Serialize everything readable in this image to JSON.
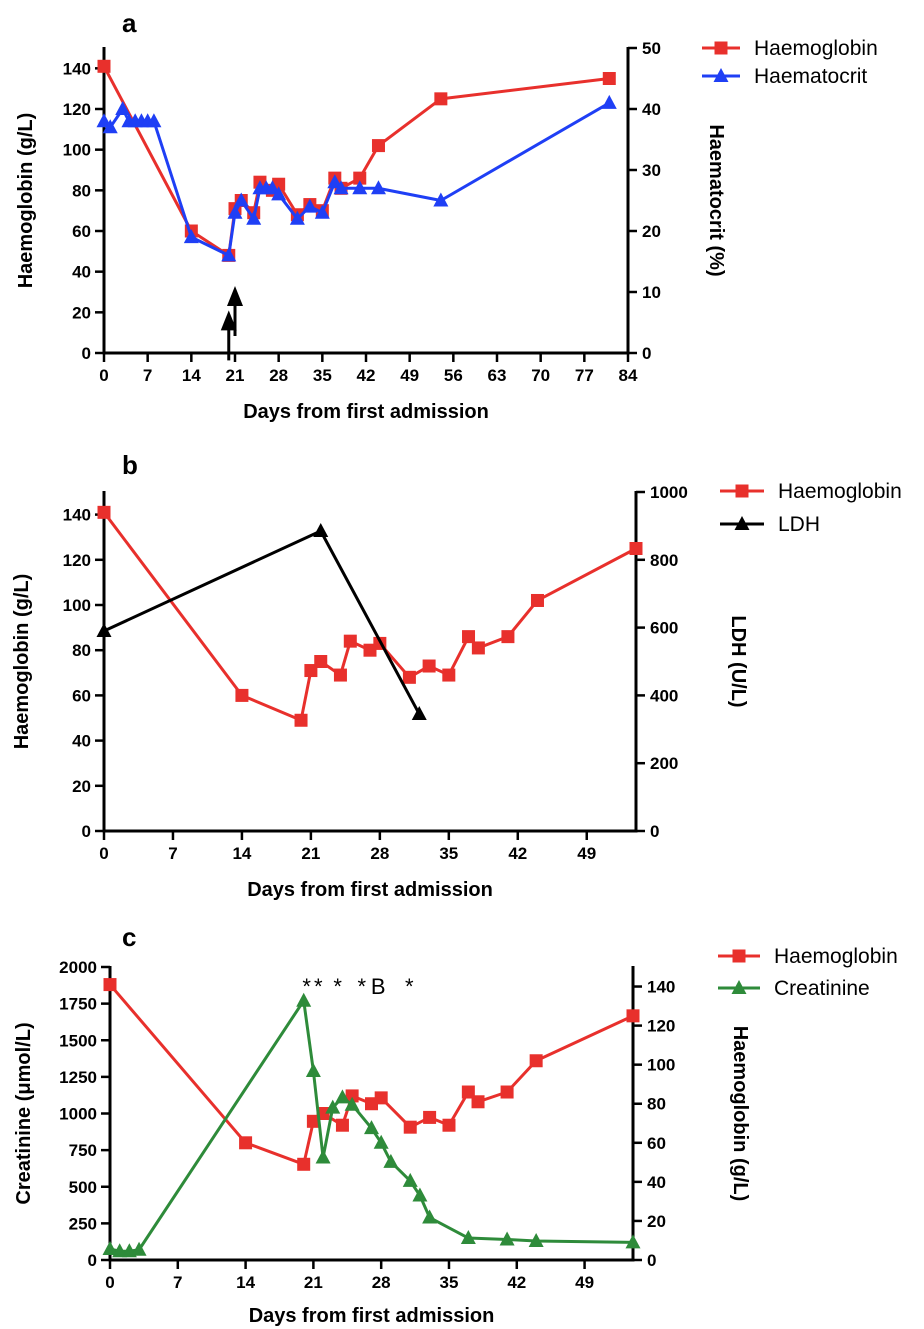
{
  "chart_data": [
    {
      "panel": "a",
      "type": "line",
      "xlabel": "Days from first admission",
      "xlim": [
        0,
        84
      ],
      "xticks": [
        0,
        7,
        14,
        21,
        28,
        35,
        42,
        49,
        56,
        63,
        70,
        77,
        84
      ],
      "ylabel": "Haemoglobin (g/L)",
      "ylim": [
        0,
        150
      ],
      "yticks": [
        0,
        20,
        40,
        60,
        80,
        100,
        120,
        140
      ],
      "y2label": "Haematocrit (%)",
      "y2lim": [
        0,
        50
      ],
      "y2ticks": [
        0,
        10,
        20,
        30,
        40,
        50
      ],
      "legend_position": "top-right",
      "series": [
        {
          "name": "Haemoglobin",
          "axis": "left",
          "color": "#e8302c",
          "marker": "square",
          "x": [
            0,
            14,
            20,
            21,
            22,
            24,
            25,
            27,
            28,
            31,
            33,
            35,
            37,
            38,
            41,
            44,
            54,
            81
          ],
          "y": [
            141,
            60,
            48,
            71,
            75,
            69,
            84,
            80,
            83,
            68,
            73,
            70,
            86,
            81,
            86,
            102,
            125,
            135
          ]
        },
        {
          "name": "Haematocrit",
          "axis": "right",
          "color": "#1f3ff5",
          "marker": "triangle",
          "x": [
            0,
            1,
            3,
            4,
            5,
            6,
            7,
            8,
            14,
            20,
            21,
            22,
            24,
            25,
            26,
            27,
            28,
            31,
            33,
            35,
            37,
            38,
            41,
            44,
            54,
            81
          ],
          "y": [
            38,
            37,
            40,
            38,
            38,
            38,
            38,
            38,
            19,
            16,
            23,
            25,
            22,
            27,
            27,
            27,
            26,
            22,
            24,
            23,
            28,
            27,
            27,
            27,
            25,
            41
          ]
        }
      ],
      "arrows": [
        {
          "x": 20,
          "y": 18,
          "direction": "up"
        },
        {
          "x": 21,
          "y": 30,
          "direction": "up"
        }
      ]
    },
    {
      "panel": "b",
      "type": "line",
      "xlabel": "Days from first admission",
      "xlim": [
        0,
        54
      ],
      "xticks": [
        0,
        7,
        14,
        21,
        28,
        35,
        42,
        49
      ],
      "ylabel": "Haemoglobin (g/L)",
      "ylim": [
        0,
        150
      ],
      "yticks": [
        0,
        20,
        40,
        60,
        80,
        100,
        120,
        140
      ],
      "y2label": "LDH (U/L)",
      "y2lim": [
        0,
        1000
      ],
      "y2ticks": [
        0,
        200,
        400,
        600,
        800,
        1000
      ],
      "legend_position": "top-right",
      "series": [
        {
          "name": "Haemoglobin",
          "axis": "left",
          "color": "#e8302c",
          "marker": "square",
          "x": [
            0,
            14,
            20,
            21,
            22,
            24,
            25,
            27,
            28,
            31,
            33,
            35,
            37,
            38,
            41,
            44,
            54
          ],
          "y": [
            141,
            60,
            49,
            71,
            75,
            69,
            84,
            80,
            83,
            68,
            73,
            69,
            86,
            81,
            86,
            102,
            125
          ]
        },
        {
          "name": "LDH",
          "axis": "right",
          "color": "#000000",
          "marker": "triangle",
          "x": [
            0,
            22,
            32
          ],
          "y": [
            590,
            885,
            345
          ]
        }
      ]
    },
    {
      "panel": "c",
      "type": "line",
      "xlabel": "Days from first admission",
      "xlim": [
        0,
        54
      ],
      "xticks": [
        0,
        7,
        14,
        21,
        28,
        35,
        42,
        49
      ],
      "ylabel": "Creatinine (μmol/L)",
      "ylim": [
        0,
        2000
      ],
      "yticks": [
        0,
        250,
        500,
        750,
        1000,
        1250,
        1500,
        1750,
        2000
      ],
      "y2label": "Haemoglobin (g/L)",
      "y2lim": [
        0,
        150
      ],
      "y2ticks": [
        0,
        20,
        40,
        60,
        80,
        100,
        120,
        140
      ],
      "legend_position": "top-right",
      "series": [
        {
          "name": "Haemoglobin",
          "axis": "right",
          "color": "#e8302c",
          "marker": "square",
          "x": [
            0,
            14,
            20,
            21,
            22,
            24,
            25,
            27,
            28,
            31,
            33,
            35,
            37,
            38,
            41,
            44,
            54
          ],
          "y": [
            141,
            60,
            49,
            71,
            75,
            69,
            84,
            80,
            83,
            68,
            73,
            69,
            86,
            81,
            86,
            102,
            125
          ]
        },
        {
          "name": "Creatinine",
          "axis": "left",
          "color": "#2e8b3a",
          "marker": "triangle",
          "x": [
            0,
            1,
            2,
            3,
            20,
            21,
            22,
            23,
            24,
            25,
            27,
            28,
            29,
            31,
            32,
            33,
            37,
            41,
            44,
            54
          ],
          "y": [
            75,
            60,
            60,
            70,
            1770,
            1290,
            700,
            1040,
            1110,
            1060,
            900,
            800,
            670,
            540,
            440,
            290,
            150,
            140,
            130,
            120
          ]
        }
      ],
      "annotations": [
        {
          "text": "*",
          "x": 20.3
        },
        {
          "text": "*",
          "x": 21.5
        },
        {
          "text": "*",
          "x": 23.5
        },
        {
          "text": "*",
          "x": 26.0
        },
        {
          "text": "B",
          "x": 27.7
        },
        {
          "text": "*",
          "x": 30.9
        }
      ]
    }
  ]
}
